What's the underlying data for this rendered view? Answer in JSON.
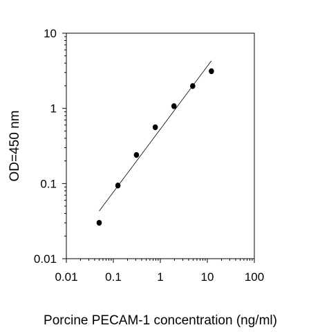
{
  "chart_data": {
    "type": "scatter",
    "title": "",
    "xlabel": "Porcine PECAM-1 concentration (ng/ml)",
    "ylabel": "OD=450 nm",
    "x_scale": "log",
    "y_scale": "log",
    "xlim": [
      0.01,
      100
    ],
    "ylim": [
      0.01,
      10
    ],
    "grid": false,
    "legend": "none",
    "x_ticks": [
      "0.01",
      "0.1",
      "1",
      "10",
      "100"
    ],
    "y_ticks": [
      "0.01",
      "0.1",
      "1",
      "10"
    ],
    "series": [
      {
        "x": [
          0.05,
          0.125,
          0.31,
          0.78,
          1.95,
          4.88,
          12.2
        ],
        "y": [
          0.03,
          0.094,
          0.24,
          0.56,
          1.07,
          1.98,
          3.12
        ]
      }
    ],
    "fit_line": {
      "x": [
        0.05,
        12.2
      ],
      "y": [
        0.043,
        4.3
      ]
    }
  }
}
